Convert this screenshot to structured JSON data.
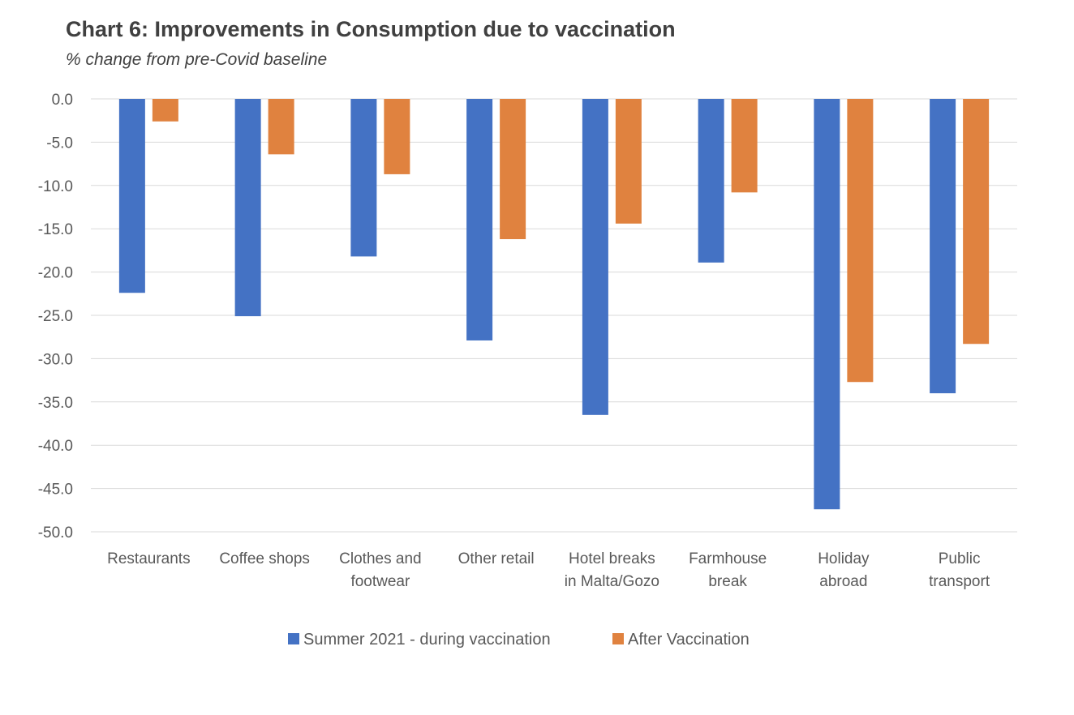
{
  "chart_data": {
    "type": "bar",
    "title": "Chart 6: Improvements in Consumption due to vaccination",
    "subtitle": "% change from pre-Covid baseline",
    "categories": [
      [
        "Restaurants"
      ],
      [
        "Coffee shops"
      ],
      [
        "Clothes and",
        "footwear"
      ],
      [
        "Other retail"
      ],
      [
        "Hotel breaks",
        "in Malta/Gozo"
      ],
      [
        "Farmhouse",
        "break"
      ],
      [
        "Holiday",
        "abroad"
      ],
      [
        "Public",
        "transport"
      ]
    ],
    "series": [
      {
        "name": "Summer 2021 - during vaccination",
        "color": "#4472C4",
        "values": [
          -22.4,
          -25.1,
          -18.2,
          -27.9,
          -36.5,
          -18.9,
          -47.4,
          -34.0
        ]
      },
      {
        "name": "After Vaccination",
        "color": "#E0823F",
        "values": [
          -2.6,
          -6.4,
          -8.7,
          -16.2,
          -14.4,
          -10.8,
          -32.7,
          -28.3
        ]
      }
    ],
    "ylim": [
      -50,
      0
    ],
    "yticks": [
      0,
      -5,
      -10,
      -15,
      -20,
      -25,
      -30,
      -35,
      -40,
      -45,
      -50
    ],
    "tick_decimals": 1,
    "grid": true,
    "legend_position": "bottom"
  }
}
